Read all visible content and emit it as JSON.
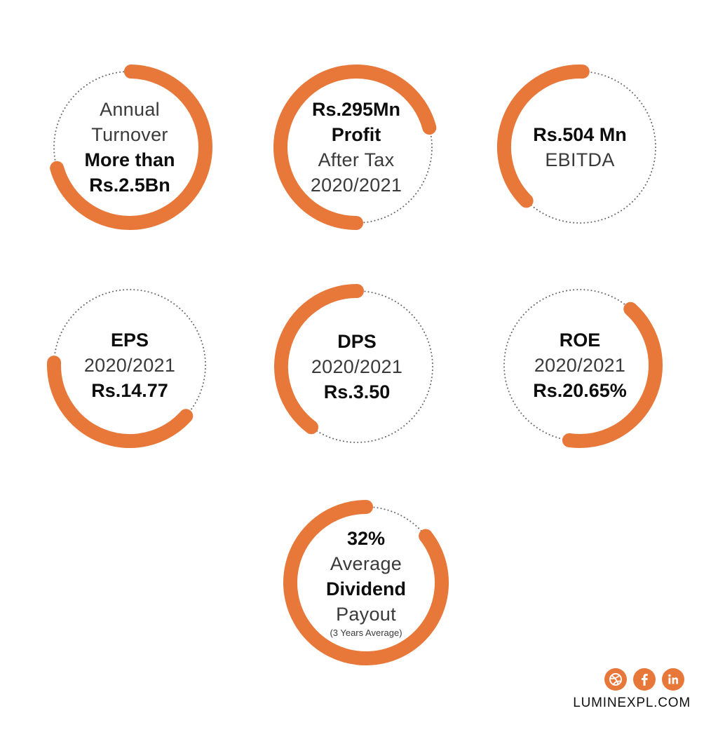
{
  "brand": {
    "accent": "#E8773A",
    "dots": "#6a6a6a"
  },
  "metrics": [
    {
      "lines": [
        "Annual",
        "Turnover",
        "More than",
        "Rs.2.5Bn"
      ]
    },
    {
      "lines": [
        "Rs.295Mn",
        "Profit",
        "After Tax",
        "2020/2021"
      ]
    },
    {
      "lines": [
        "Rs.504 Mn",
        "EBITDA"
      ]
    },
    {
      "lines": [
        "EPS",
        "2020/2021",
        "Rs.14.77"
      ]
    },
    {
      "lines": [
        "DPS",
        "2020/2021",
        "Rs.3.50"
      ]
    },
    {
      "lines": [
        "ROE",
        "2020/2021",
        "Rs.20.65%"
      ]
    },
    {
      "lines": [
        "32%",
        "Average",
        "Dividend",
        "Payout",
        "(3 Years Average)"
      ]
    }
  ],
  "footer": {
    "icons": [
      "dribbble-icon",
      "facebook-icon",
      "linkedin-icon"
    ],
    "website": "LUMINEXPL.COM"
  }
}
